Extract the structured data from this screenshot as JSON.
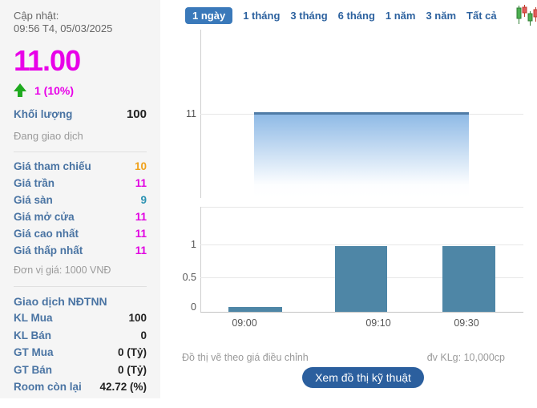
{
  "left_panel": {
    "update_label": "Cập nhật:",
    "update_time": "09:56 T4, 05/03/2025",
    "price": "11.00",
    "change": "1 (10%)",
    "volume_label": "Khối lượng",
    "volume_value": "100",
    "status": "Đang giao dịch",
    "price_rows": [
      {
        "label": "Giá tham chiếu",
        "value": "10",
        "color": "#f0a11b"
      },
      {
        "label": "Giá trần",
        "value": "11",
        "color": "#e100e1"
      },
      {
        "label": "Giá sàn",
        "value": "9",
        "color": "#2b92b2"
      },
      {
        "label": "Giá mở cửa",
        "value": "11",
        "color": "#e100e1"
      },
      {
        "label": "Giá cao nhất",
        "value": "11",
        "color": "#e100e1"
      },
      {
        "label": "Giá thấp nhất",
        "value": "11",
        "color": "#e100e1"
      }
    ],
    "unit_note": "Đơn vị giá: 1000 VNĐ",
    "foreign_header": "Giao dịch NĐTNN",
    "foreign_rows": [
      {
        "label": "KL Mua",
        "value": "100"
      },
      {
        "label": "KL Bán",
        "value": "0"
      },
      {
        "label": "GT Mua",
        "value": "0 (Tỷ)"
      },
      {
        "label": "GT Bán",
        "value": "0 (Tỷ)"
      },
      {
        "label": "Room còn lại",
        "value": "42.72 (%)"
      }
    ]
  },
  "toolbar": {
    "tabs": [
      {
        "label": "1 ngày",
        "active": true
      },
      {
        "label": "1 tháng",
        "active": false
      },
      {
        "label": "3 tháng",
        "active": false
      },
      {
        "label": "6 tháng",
        "active": false
      },
      {
        "label": "1 năm",
        "active": false
      },
      {
        "label": "3 năm",
        "active": false
      },
      {
        "label": "Tất cả",
        "active": false
      }
    ],
    "chart_type_icon": "candlestick-icon"
  },
  "chart_data": [
    {
      "type": "area",
      "name": "intraday-price",
      "x": [
        "09:00",
        "09:10",
        "09:30"
      ],
      "series": [
        {
          "name": "Giá",
          "values": [
            11,
            11,
            11
          ]
        }
      ],
      "yticks": [
        "11"
      ],
      "ylim": [
        9.5,
        12.5
      ],
      "grid": true,
      "line_color": "#4f7ba6",
      "fill_top_color": "#8fbae6",
      "note": "flat line at 11 spanning most of the session"
    },
    {
      "type": "bar",
      "name": "volume",
      "categories": [
        "09:00",
        "09:10",
        "09:30"
      ],
      "values": [
        0.07,
        0.98,
        0.98
      ],
      "yticks": [
        "0",
        "0.5",
        "1"
      ],
      "ylim": [
        0,
        1.55
      ],
      "grid": true,
      "bar_color": "#4e86a6",
      "unit": "đv KLg: 10,000cp"
    }
  ],
  "footer": {
    "left_note": "Đồ thị vẽ theo giá điều chỉnh",
    "right_note": "đv KLg: 10,000cp",
    "button_label": "Xem đồ thị kỹ thuật"
  },
  "colors": {
    "price_up_magenta": "#e800e8",
    "reference_orange": "#f0a11b",
    "floor_teal": "#2b92b2",
    "label_blue": "#4a74a3",
    "tab_active_bg": "#3a79ba",
    "button_bg": "#2b5f9e",
    "bar_blue": "#4e86a6",
    "arrow_green": "#1faa1f",
    "panel_bg": "#f5f5f5"
  }
}
